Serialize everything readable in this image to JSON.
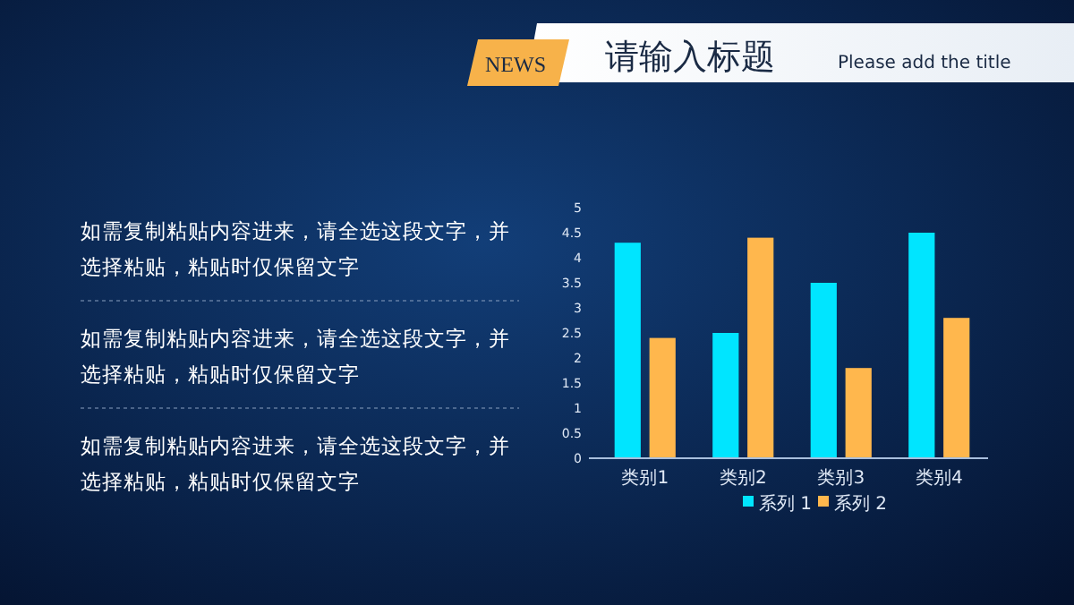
{
  "chart_data": {
    "type": "bar",
    "title": "请输入标题",
    "subtitle": "Please add the title",
    "annotations": [
      "NEWS",
      "如需复制粘贴内容进来，请全选这段文字，并选择粘贴，粘贴时仅保留文字",
      "如需复制粘贴内容进来，请全选这段文字，并选择粘贴，粘贴时仅保留文字",
      "如需复制粘贴内容进来，请全选这段文字，并选择粘贴，粘贴时仅保留文字"
    ],
    "categories": [
      "类别1",
      "类别2",
      "类别3",
      "类别4"
    ],
    "series": [
      {
        "name": "系列 1",
        "color": "#00e5ff",
        "values": [
          4.3,
          2.5,
          3.5,
          4.5
        ]
      },
      {
        "name": "系列 2",
        "color": "#ffb74d",
        "values": [
          2.4,
          4.4,
          1.8,
          2.8
        ]
      }
    ],
    "ylim": [
      0,
      5
    ],
    "yticks": [
      0,
      0.5,
      1,
      1.5,
      2,
      2.5,
      3,
      3.5,
      4,
      4.5,
      5
    ],
    "grid": false,
    "legend": "bottom"
  }
}
